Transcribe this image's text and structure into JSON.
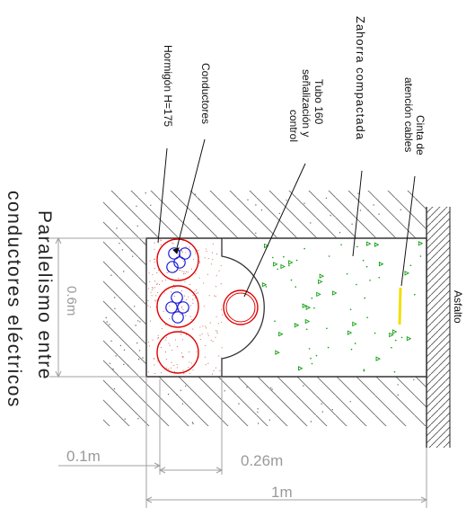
{
  "title_line1": "Paralelismo entre",
  "title_line2": "conductores eléctricos",
  "labels": {
    "conductores": "Conductores",
    "hormigon": "Hormigón H=175",
    "tubo_line1": "Tubo 160",
    "tubo_line2": "señalización y",
    "tubo_line3": "control",
    "zahorra": "Zahorra compactada",
    "cinta_line1": "Cinta de",
    "cinta_line2": "atención cables",
    "asfalto": "Asfalto"
  },
  "dimensions": {
    "height": "0.6m",
    "conc_width": "0.1m",
    "tube_width": "0.26m",
    "total_width": "1m"
  },
  "colors": {
    "conductor_circle": "#e00000",
    "cable": "#1a1ad8",
    "gravel_dots": "#10a010",
    "concrete_dots": "#c86050",
    "warning_tape": "#f0e000",
    "dimension_line": "#a0a0a0",
    "hatch": "#7a7a7a"
  }
}
